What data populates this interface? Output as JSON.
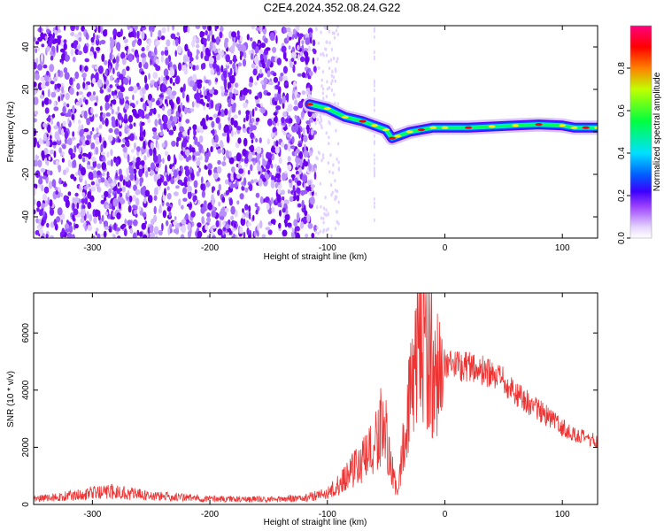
{
  "title": "C2E4.2024.352.08.24.G22",
  "chart_data": [
    {
      "type": "heatmap",
      "xlabel": "Height of straight line (km)",
      "ylabel": "Frequency (Hz)",
      "xlim": [
        -350,
        130
      ],
      "ylim": [
        -50,
        50
      ],
      "x_ticks": [
        -300,
        -200,
        -100,
        0,
        100
      ],
      "x_tick_labels": [
        "-300",
        "-200",
        "-100",
        "0",
        "100"
      ],
      "y_ticks": [
        -40,
        -20,
        0,
        20,
        40
      ],
      "y_tick_labels": [
        "-40",
        "-20",
        "0",
        "20",
        "40"
      ],
      "colorbar": {
        "label": "Normalized spectral amplitude",
        "range": [
          0,
          1
        ],
        "ticks": [
          0.0,
          0.2,
          0.4,
          0.6,
          0.8
        ],
        "tick_labels": [
          "0.0",
          "0.2",
          "0.4",
          "0.6",
          "0.8"
        ],
        "colors": [
          "#ffffff",
          "#e6d6ff",
          "#7a00ff",
          "#0000ff",
          "#00ffff",
          "#00ff40",
          "#ffff00",
          "#ff0000",
          "#ff0080"
        ]
      },
      "noise_region_x": [
        -350,
        -110
      ],
      "signal_track": {
        "x": [
          -115,
          -100,
          -85,
          -70,
          -60,
          -50,
          -45,
          -40,
          -30,
          -20,
          -10,
          0,
          20,
          40,
          60,
          80,
          100,
          110,
          120,
          130
        ],
        "frequency": [
          13,
          11,
          7,
          5,
          3,
          1,
          -3,
          -2,
          0,
          1,
          2,
          2,
          2,
          2.5,
          3,
          3.5,
          3,
          2,
          2,
          2
        ]
      },
      "grid": false
    },
    {
      "type": "line",
      "xlabel": "Height of straight line (km)",
      "ylabel": "SNR (10 * v/v)",
      "xlim": [
        -350,
        130
      ],
      "ylim": [
        0,
        7400
      ],
      "x_ticks": [
        -300,
        -200,
        -100,
        0,
        100
      ],
      "x_tick_labels": [
        "-300",
        "-200",
        "-100",
        "0",
        "100"
      ],
      "y_ticks": [
        0,
        2000,
        4000,
        6000
      ],
      "y_tick_labels": [
        "0",
        "2000",
        "4000",
        "6000"
      ],
      "series": [
        {
          "color": "#ee3333",
          "x": [
            -350,
            -330,
            -300,
            -280,
            -250,
            -200,
            -150,
            -120,
            -100,
            -90,
            -80,
            -70,
            -65,
            -60,
            -55,
            -50,
            -45,
            -40,
            -35,
            -30,
            -25,
            -20,
            -15,
            -10,
            -5,
            0,
            10,
            20,
            30,
            40,
            50,
            60,
            70,
            80,
            90,
            100,
            110,
            120,
            130
          ],
          "values": [
            200,
            250,
            400,
            450,
            300,
            200,
            180,
            220,
            400,
            700,
            1200,
            1500,
            1700,
            2000,
            2800,
            2400,
            1200,
            300,
            2500,
            3500,
            4800,
            6500,
            5500,
            5000,
            4500,
            4700,
            4900,
            4850,
            4700,
            4500,
            4300,
            3900,
            3600,
            3300,
            3000,
            2700,
            2450,
            2300,
            2200
          ]
        }
      ],
      "grid": false
    }
  ]
}
